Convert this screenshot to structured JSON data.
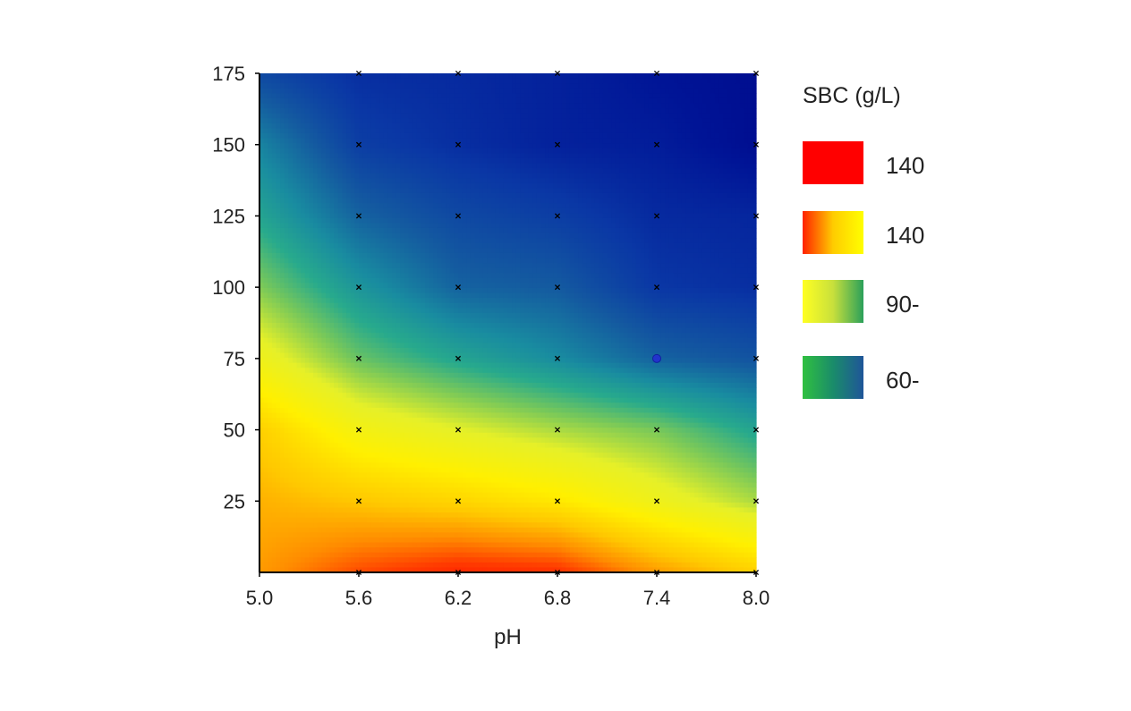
{
  "chart_data": {
    "type": "heatmap",
    "x_values": [
      5.0,
      5.6,
      6.2,
      6.8,
      7.4,
      8.0
    ],
    "x_tick_labels": [
      "5.0",
      "5.6",
      "6.2",
      "6.8",
      "7.4",
      "8.0"
    ],
    "y_values": [
      0,
      25,
      50,
      75,
      100,
      125,
      150,
      175
    ],
    "y_tick_labels": [
      "25",
      "50",
      "75",
      "100",
      "125",
      "150",
      "175"
    ],
    "y_tick_values": [
      25,
      50,
      75,
      100,
      125,
      150,
      175
    ],
    "xlabel": "pH",
    "ylabel": "",
    "xlim": [
      5.0,
      8.0
    ],
    "ylim": [
      0,
      175
    ],
    "z_grid": [
      [
        125,
        138,
        145,
        143,
        125,
        112
      ],
      [
        120,
        115,
        110,
        103,
        90,
        78
      ],
      [
        112,
        93,
        85,
        78,
        72,
        60
      ],
      [
        90,
        70,
        60,
        52,
        42,
        38
      ],
      [
        73,
        55,
        42,
        40,
        30,
        28
      ],
      [
        60,
        42,
        35,
        32,
        27,
        26
      ],
      [
        50,
        32,
        28,
        25,
        24,
        20
      ],
      [
        35,
        28,
        27,
        25,
        22,
        20
      ]
    ],
    "markers": [
      {
        "x": 5.6,
        "y": 0
      },
      {
        "x": 6.2,
        "y": 0
      },
      {
        "x": 6.8,
        "y": 0
      },
      {
        "x": 7.4,
        "y": 0
      },
      {
        "x": 8.0,
        "y": 0
      },
      {
        "x": 5.6,
        "y": 25
      },
      {
        "x": 6.2,
        "y": 25
      },
      {
        "x": 6.8,
        "y": 25
      },
      {
        "x": 7.4,
        "y": 25
      },
      {
        "x": 8.0,
        "y": 25
      },
      {
        "x": 5.6,
        "y": 50
      },
      {
        "x": 6.2,
        "y": 50
      },
      {
        "x": 6.8,
        "y": 50
      },
      {
        "x": 7.4,
        "y": 50
      },
      {
        "x": 8.0,
        "y": 50
      },
      {
        "x": 5.6,
        "y": 75
      },
      {
        "x": 6.2,
        "y": 75
      },
      {
        "x": 6.8,
        "y": 75
      },
      {
        "x": 8.0,
        "y": 75
      },
      {
        "x": 5.6,
        "y": 100
      },
      {
        "x": 6.2,
        "y": 100
      },
      {
        "x": 6.8,
        "y": 100
      },
      {
        "x": 7.4,
        "y": 100
      },
      {
        "x": 8.0,
        "y": 100
      },
      {
        "x": 5.6,
        "y": 125
      },
      {
        "x": 6.2,
        "y": 125
      },
      {
        "x": 6.8,
        "y": 125
      },
      {
        "x": 7.4,
        "y": 125
      },
      {
        "x": 8.0,
        "y": 125
      },
      {
        "x": 5.6,
        "y": 150
      },
      {
        "x": 6.2,
        "y": 150
      },
      {
        "x": 6.8,
        "y": 150
      },
      {
        "x": 7.4,
        "y": 150
      },
      {
        "x": 8.0,
        "y": 150
      },
      {
        "x": 5.6,
        "y": 175
      },
      {
        "x": 6.2,
        "y": 175
      },
      {
        "x": 6.8,
        "y": 175
      },
      {
        "x": 7.4,
        "y": 175
      },
      {
        "x": 8.0,
        "y": 175
      }
    ],
    "highlight_point": {
      "x": 7.4,
      "y": 75,
      "color": "#2233cc"
    },
    "legend": {
      "title": "SBC (g/L)",
      "placement": "right",
      "entries": [
        {
          "label": "140",
          "colors": [
            "#ff0000",
            "#ff0000"
          ]
        },
        {
          "label": "140",
          "colors": [
            "#ff2200",
            "#ffcc00",
            "#ffff00"
          ]
        },
        {
          "label": "90-",
          "colors": [
            "#ffff22",
            "#c8e03c",
            "#2aa05a"
          ]
        },
        {
          "label": "60-",
          "colors": [
            "#30c040",
            "#1a8c6a",
            "#1f5599"
          ]
        }
      ]
    },
    "colors": {
      "axis": "#000000",
      "marker": "#000000"
    }
  }
}
